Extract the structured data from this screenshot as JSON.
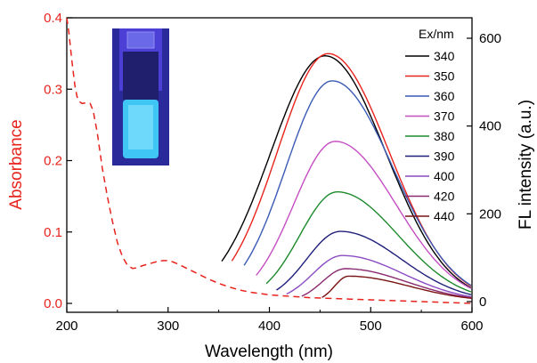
{
  "chart_data": {
    "type": "line",
    "xlabel": "Wavelength (nm)",
    "xlim": [
      200,
      600
    ],
    "x_ticks": [
      200,
      300,
      400,
      500,
      600
    ],
    "y_left": {
      "label": "Absorbance",
      "color": "#e8231d",
      "lim": [
        0.0,
        0.4
      ],
      "ticks": [
        "0.0",
        "0.1",
        "0.2",
        "0.3",
        "0.4"
      ]
    },
    "y_right": {
      "label": "FL intensity (a.u.)",
      "color": "#000000",
      "lim": [
        0,
        650
      ],
      "ticks": [
        "0",
        "200",
        "400",
        "600"
      ]
    },
    "absorbance_series": {
      "axis": "left",
      "style": "dashed",
      "color": "#e8231d",
      "x": [
        200,
        202,
        205,
        208,
        210,
        212,
        215,
        220,
        223,
        226,
        230,
        235,
        240,
        245,
        250,
        255,
        260,
        265,
        270,
        275,
        280,
        285,
        290,
        295,
        300,
        305,
        310,
        320,
        330,
        340,
        350,
        360,
        370,
        380,
        390,
        400,
        420,
        440,
        460,
        480,
        500,
        520,
        540,
        560,
        580,
        600
      ],
      "y": [
        0.4,
        0.38,
        0.34,
        0.305,
        0.29,
        0.283,
        0.28,
        0.281,
        0.28,
        0.27,
        0.24,
        0.19,
        0.15,
        0.115,
        0.085,
        0.065,
        0.053,
        0.049,
        0.05,
        0.053,
        0.055,
        0.057,
        0.059,
        0.06,
        0.06,
        0.058,
        0.055,
        0.048,
        0.041,
        0.034,
        0.028,
        0.023,
        0.019,
        0.016,
        0.014,
        0.012,
        0.01,
        0.008,
        0.007,
        0.006,
        0.005,
        0.004,
        0.003,
        0.002,
        0.001,
        0.0
      ]
    },
    "legend": {
      "title": "Ex/nm",
      "position": "top-right"
    },
    "fl_series": [
      {
        "name": "340",
        "color": "#000000",
        "start": 353,
        "peak_x": 455,
        "peak_y": 560
      },
      {
        "name": "350",
        "color": "#e8231d",
        "start": 363,
        "peak_x": 458,
        "peak_y": 565
      },
      {
        "name": "360",
        "color": "#3a5bb5",
        "start": 375,
        "peak_x": 462,
        "peak_y": 503
      },
      {
        "name": "370",
        "color": "#c54fc2",
        "start": 387,
        "peak_x": 465,
        "peak_y": 365
      },
      {
        "name": "380",
        "color": "#1c8a2c",
        "start": 397,
        "peak_x": 467,
        "peak_y": 250
      },
      {
        "name": "390",
        "color": "#1f1f7a",
        "start": 407,
        "peak_x": 470,
        "peak_y": 160
      },
      {
        "name": "400",
        "color": "#8b4bc2",
        "start": 417,
        "peak_x": 472,
        "peak_y": 105
      },
      {
        "name": "420",
        "color": "#8a2a6e",
        "start": 432,
        "peak_x": 475,
        "peak_y": 75
      },
      {
        "name": "440",
        "color": "#7a1414",
        "start": 452,
        "peak_x": 478,
        "peak_y": 58
      }
    ],
    "inset_image": {
      "description_icon": "vial-fluorescence-photo",
      "background": "#2a2a9a",
      "glow_color": "#3fc6f5"
    }
  }
}
